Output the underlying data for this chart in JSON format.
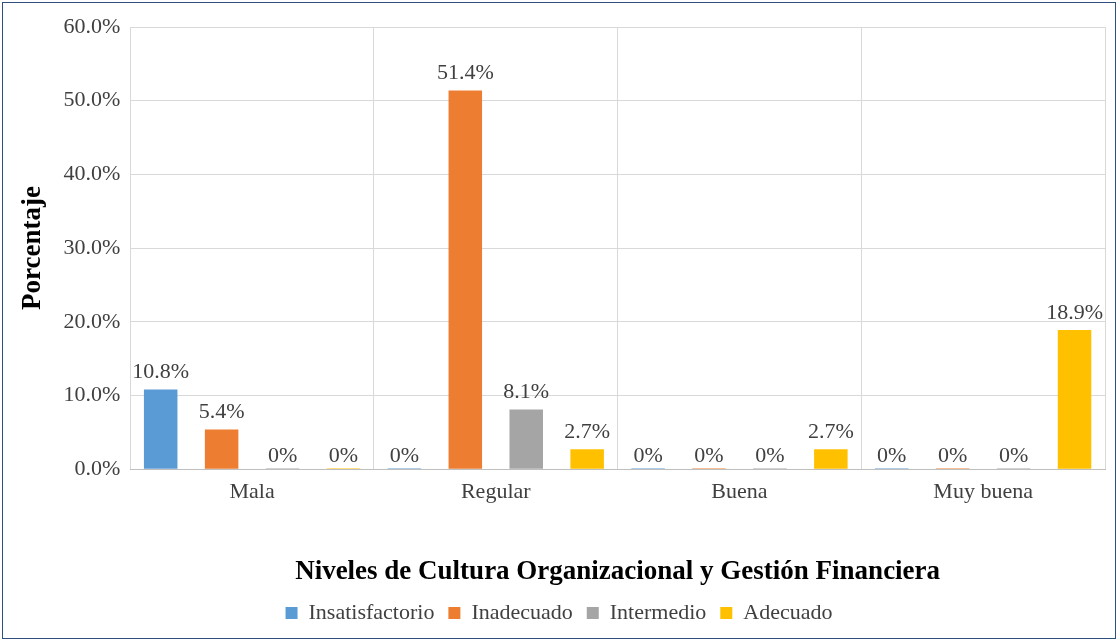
{
  "chart_data": {
    "type": "bar",
    "xlabel": "Niveles de Cultura Organizacional y Gestión Financiera",
    "ylabel": "Porcentaje",
    "categories": [
      "Mala",
      "Regular",
      "Buena",
      "Muy buena"
    ],
    "series": [
      {
        "name": "Insatisfactorio",
        "color": "#5b9bd5",
        "values": [
          10.8,
          0,
          0,
          0
        ],
        "value_labels": [
          "10.8%",
          "0%",
          "0%",
          "0%"
        ]
      },
      {
        "name": "Inadecuado",
        "color": "#ed7d31",
        "values": [
          5.4,
          51.4,
          0,
          0
        ],
        "value_labels": [
          "5.4%",
          "51.4%",
          "0%",
          "0%"
        ]
      },
      {
        "name": "Intermedio",
        "color": "#a5a5a5",
        "values": [
          0,
          8.1,
          0,
          0
        ],
        "value_labels": [
          "0%",
          "8.1%",
          "0%",
          "0%"
        ]
      },
      {
        "name": "Adecuado",
        "color": "#ffc000",
        "values": [
          0,
          2.7,
          2.7,
          18.9
        ],
        "value_labels": [
          "0%",
          "2.7%",
          "2.7%",
          "18.9%"
        ]
      }
    ],
    "ylim": [
      0,
      60
    ],
    "yticks": [
      {
        "value": 0,
        "label": "0.0%"
      },
      {
        "value": 10,
        "label": "10.0%"
      },
      {
        "value": 20,
        "label": "20.0%"
      },
      {
        "value": 30,
        "label": "30.0%"
      },
      {
        "value": 40,
        "label": "40.0%"
      },
      {
        "value": 50,
        "label": "50.0%"
      },
      {
        "value": 60,
        "label": "60.0%"
      }
    ],
    "grid": true,
    "legend": "bottom"
  }
}
